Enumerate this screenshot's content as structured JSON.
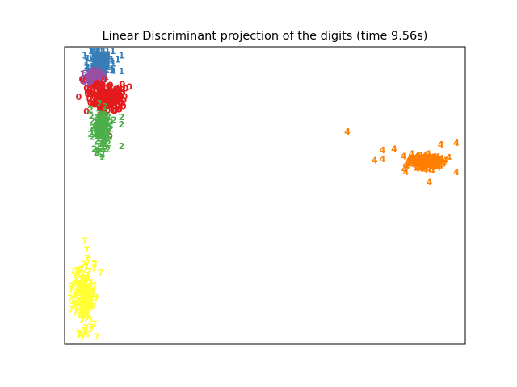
{
  "chart_data": {
    "type": "scatter",
    "title": "Linear Discriminant projection of the digits (time 9.56s)",
    "xlabel": "",
    "ylabel": "",
    "xlim": [
      0,
      1
    ],
    "ylim": [
      0,
      1
    ],
    "ticks": "none",
    "grid": false,
    "legend": "none",
    "marker": "digit text labels",
    "series": [
      {
        "label_text": "1",
        "color": "#377eb8",
        "cluster": {
          "cx": 0.085,
          "cy": 0.96,
          "sx": 0.014,
          "sy": 0.027,
          "n": 180,
          "seed": 11
        },
        "points": [
          [
            0.13,
            0.97
          ],
          [
            0.14,
            0.93
          ],
          [
            0.05,
            0.95
          ],
          [
            0.14,
            0.985
          ],
          [
            0.04,
            0.92
          ]
        ]
      },
      {
        "label_text": "6",
        "color": "#984ea3",
        "cluster": {
          "cx": 0.07,
          "cy": 0.905,
          "sx": 0.012,
          "sy": 0.012,
          "n": 60,
          "seed": 23
        },
        "points": [
          [
            0.04,
            0.895
          ],
          [
            0.05,
            0.91
          ]
        ]
      },
      {
        "label_text": "0",
        "color": "#e41a1c",
        "cluster": {
          "cx": 0.1,
          "cy": 0.84,
          "sx": 0.02,
          "sy": 0.025,
          "n": 180,
          "seed": 37
        },
        "points": [
          [
            0.16,
            0.875
          ],
          [
            0.15,
            0.87
          ],
          [
            0.04,
            0.9
          ],
          [
            0.05,
            0.79
          ],
          [
            0.11,
            0.705
          ],
          [
            0.03,
            0.84
          ],
          [
            0.14,
            0.82
          ],
          [
            0.05,
            0.87
          ]
        ]
      },
      {
        "label_text": "2",
        "color": "#4daf4a",
        "cluster": {
          "cx": 0.09,
          "cy": 0.73,
          "sx": 0.011,
          "sy": 0.035,
          "n": 150,
          "seed": 53
        },
        "points": [
          [
            0.14,
            0.745
          ],
          [
            0.14,
            0.67
          ],
          [
            0.09,
            0.64
          ],
          [
            0.07,
            0.66
          ],
          [
            0.14,
            0.77
          ],
          [
            0.06,
            0.795
          ]
        ]
      },
      {
        "label_text": "4",
        "color": "#ff7f00",
        "cluster": {
          "cx": 0.92,
          "cy": 0.615,
          "sx": 0.025,
          "sy": 0.012,
          "n": 190,
          "seed": 71
        },
        "points": [
          [
            0.72,
            0.72
          ],
          [
            0.81,
            0.655
          ],
          [
            0.84,
            0.66
          ],
          [
            0.81,
            0.625
          ],
          [
            0.79,
            0.62
          ],
          [
            0.96,
            0.675
          ],
          [
            1.0,
            0.68
          ],
          [
            1.0,
            0.58
          ],
          [
            0.93,
            0.545
          ],
          [
            0.87,
            0.58
          ],
          [
            0.98,
            0.63
          ]
        ]
      },
      {
        "label_text": "7",
        "color": "#ffff33",
        "cluster": {
          "cx": 0.04,
          "cy": 0.15,
          "sx": 0.015,
          "sy": 0.06,
          "n": 200,
          "seed": 97
        },
        "points": [
          [
            0.045,
            0.34
          ],
          [
            0.05,
            0.31
          ],
          [
            0.03,
            0.02
          ],
          [
            0.06,
            0.04
          ],
          [
            0.02,
            0.12
          ],
          [
            0.07,
            0.26
          ]
        ]
      }
    ]
  }
}
